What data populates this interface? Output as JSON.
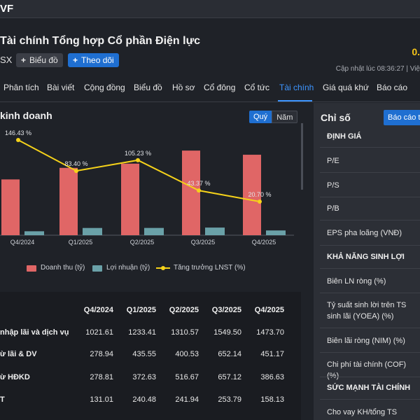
{
  "topbar": {
    "logo": "VF"
  },
  "company": {
    "title": "Tài chính Tổng hợp Cổ phần Điện lực",
    "ticker": "SX",
    "chart_button": "Biểu đồ",
    "follow_button": "Theo dõi",
    "price": "0.",
    "updated": "Cập nhật lúc   08:36:27 | Việ"
  },
  "tabs": [
    "Phân tích",
    "Bài viết",
    "Cộng đồng",
    "Biểu đồ",
    "Hồ sơ",
    "Cổ đông",
    "Cổ tức",
    "Tài chính",
    "Giá quá khứ",
    "Báo cáo"
  ],
  "active_tab": "Tài chính",
  "business": {
    "title": "kinh doanh",
    "period_quarter": "Quý",
    "period_year": "Năm"
  },
  "colors": {
    "revenue": "#e06666",
    "profit": "#6aa1a8",
    "growth": "#f5d21a",
    "accent": "#1f6fd1"
  },
  "chart_data": {
    "type": "bar",
    "categories": [
      "Q4/2024",
      "Q1/2025",
      "Q2/2025",
      "Q3/2025",
      "Q4/2025"
    ],
    "series": [
      {
        "name": "Doanh thu (tỷ)",
        "type": "bar",
        "values": [
          1021.61,
          1233.41,
          1310.57,
          1549.5,
          1473.7
        ]
      },
      {
        "name": "Lợi nhuận (tỷ)",
        "type": "bar",
        "values": [
          131.01,
          240.48,
          241.94,
          253.79,
          158.13
        ]
      },
      {
        "name": "Tăng trưởng LNST (%)",
        "type": "line",
        "values": [
          146.43,
          83.4,
          105.23,
          43.37,
          20.7
        ]
      }
    ],
    "point_labels": [
      "146.43 %",
      "83.40 %",
      "105.23 %",
      "43.37 %",
      "20.70 %"
    ],
    "legend_position": "bottom"
  },
  "table": {
    "columns": [
      "Q4/2024",
      "Q1/2025",
      "Q2/2025",
      "Q3/2025",
      "Q4/2025"
    ],
    "rows": [
      {
        "label": "nhập lãi và dịch vụ",
        "values": [
          "1021.61",
          "1233.41",
          "1310.57",
          "1549.50",
          "1473.70"
        ]
      },
      {
        "label": "ừ lãi & DV",
        "values": [
          "278.94",
          "435.55",
          "400.53",
          "652.14",
          "451.17"
        ]
      },
      {
        "label": "ừ HĐKD",
        "values": [
          "278.81",
          "372.63",
          "516.67",
          "657.12",
          "386.63"
        ]
      },
      {
        "label": "T",
        "values": [
          "131.01",
          "240.48",
          "241.94",
          "253.79",
          "158.13"
        ]
      }
    ]
  },
  "metrics": {
    "title": "Chỉ số",
    "report_button": "Báo cáo t",
    "sections": [
      {
        "heading": "ĐỊNH GIÁ",
        "items": [
          "P/E",
          "P/S",
          "P/B",
          "EPS pha loãng (VNĐ)"
        ]
      },
      {
        "heading": "KHẢ NĂNG SINH LỢI",
        "items": [
          "Biên LN ròng (%)",
          "Tỷ suất sinh lời trên TS sinh lãi (YOEA) (%)",
          "Biên lãi ròng (NIM) (%)",
          "Chi phí tài chính (COF) (%)"
        ]
      },
      {
        "heading": "SỨC MẠNH TÀI CHÍNH",
        "items": [
          "Cho vay KH/tổng TS"
        ]
      }
    ]
  }
}
